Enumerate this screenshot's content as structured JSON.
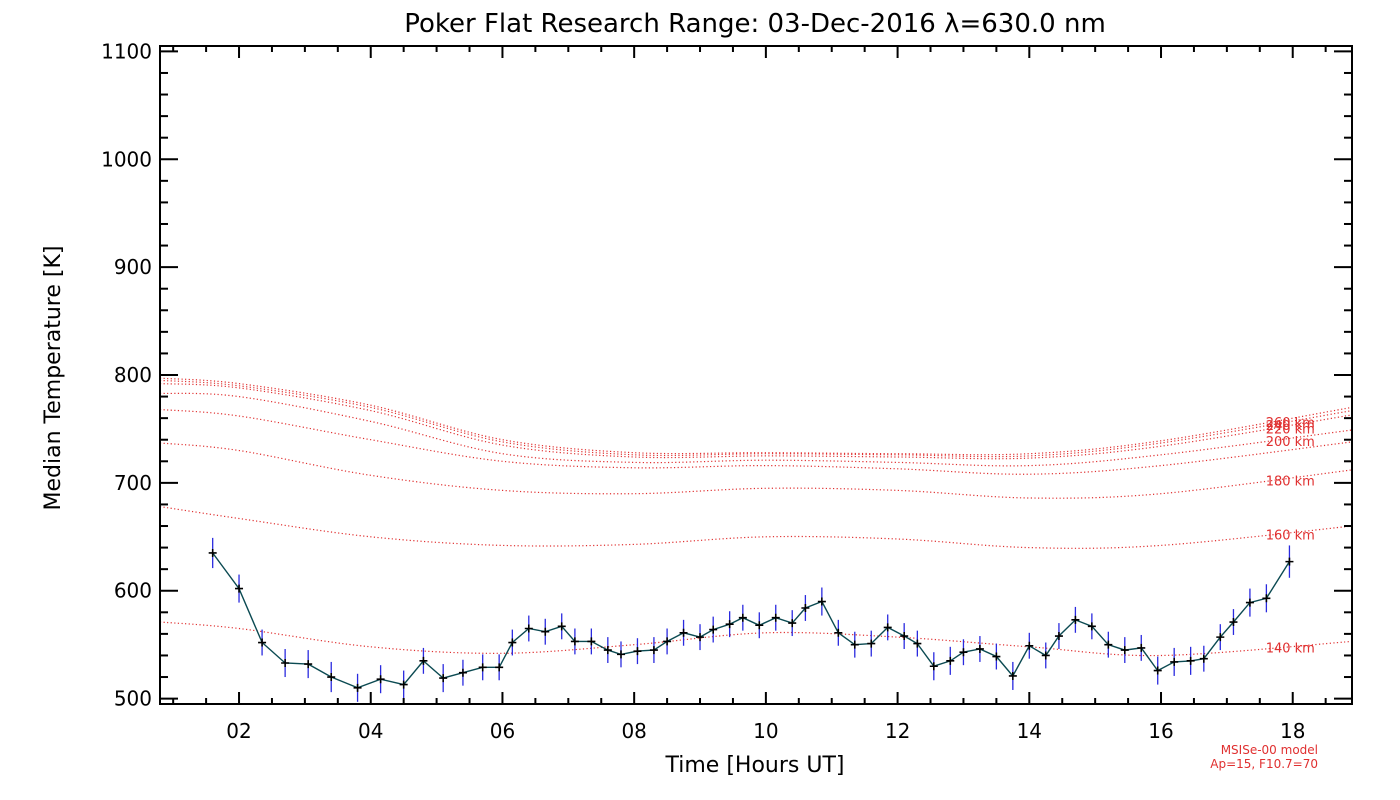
{
  "colors": {
    "axis": "#000000",
    "model_curve": "#e03030",
    "data_line": "#0b4a52",
    "error_bar": "#2a2adf",
    "marker": "#000000"
  },
  "chart_data": {
    "type": "line",
    "title": "Poker Flat Research Range: 03-Dec-2016 λ=630.0 nm",
    "xlabel": "Time [Hours UT]",
    "ylabel": "Median Temperature [K]",
    "xlim": [
      0.8,
      18.9
    ],
    "ylim": [
      495,
      1105
    ],
    "x_ticks": [
      2,
      4,
      6,
      8,
      10,
      12,
      14,
      16,
      18
    ],
    "x_tick_labels": [
      "02",
      "04",
      "06",
      "08",
      "10",
      "12",
      "14",
      "16",
      "18"
    ],
    "y_ticks": [
      500,
      600,
      700,
      800,
      900,
      1000,
      1100
    ],
    "y_tick_labels": [
      "500",
      "600",
      "700",
      "800",
      "900",
      "1000",
      "1100"
    ],
    "model_note": [
      "MSISe-00 model",
      "Ap=15, F10.7=70"
    ],
    "model_x": [
      0.8,
      2,
      4,
      6,
      8,
      10,
      12,
      14,
      16,
      18.9
    ],
    "model_series": [
      {
        "name": "260 km",
        "label": "260 km",
        "values": [
          797,
          792,
          772,
          740,
          728,
          728,
          727,
          727,
          739,
          770
        ]
      },
      {
        "name": "240 km",
        "label": "240 km",
        "values": [
          795,
          790,
          770,
          738,
          726,
          727,
          726,
          725,
          737,
          767
        ]
      },
      {
        "name": "220 km",
        "label": "220 km",
        "values": [
          792,
          788,
          767,
          735,
          724,
          725,
          724,
          723,
          734,
          763
        ]
      },
      {
        "name": "200 km",
        "label": "200 km",
        "values": [
          783,
          780,
          757,
          727,
          719,
          721,
          719,
          716,
          726,
          749
        ]
      },
      {
        "name": "unlabeled",
        "label": "",
        "values": [
          768,
          762,
          740,
          720,
          714,
          716,
          713,
          708,
          716,
          738
        ]
      },
      {
        "name": "180 km",
        "label": "180 km",
        "values": [
          737,
          730,
          707,
          693,
          690,
          695,
          693,
          686,
          690,
          712
        ]
      },
      {
        "name": "160 km",
        "label": "160 km",
        "values": [
          678,
          667,
          650,
          642,
          643,
          650,
          648,
          640,
          642,
          660
        ]
      },
      {
        "name": "140 km",
        "label": "140 km",
        "values": [
          571,
          565,
          548,
          542,
          550,
          561,
          557,
          548,
          540,
          553
        ]
      }
    ],
    "observed": {
      "name": "Median Temperature",
      "x": [
        1.6,
        2.0,
        2.35,
        2.7,
        3.05,
        3.4,
        3.8,
        4.15,
        4.5,
        4.8,
        5.1,
        5.4,
        5.7,
        5.95,
        6.15,
        6.4,
        6.65,
        6.9,
        7.1,
        7.35,
        7.6,
        7.8,
        8.05,
        8.3,
        8.5,
        8.75,
        9.0,
        9.2,
        9.45,
        9.65,
        9.9,
        10.15,
        10.4,
        10.6,
        10.85,
        11.1,
        11.35,
        11.6,
        11.85,
        12.1,
        12.3,
        12.55,
        12.8,
        13.0,
        13.25,
        13.5,
        13.75,
        14.0,
        14.25,
        14.45,
        14.7,
        14.95,
        15.2,
        15.45,
        15.7,
        15.95,
        16.2,
        16.45,
        16.65,
        16.9,
        17.1,
        17.35,
        17.6,
        17.95
      ],
      "y": [
        635,
        602,
        552,
        533,
        532,
        520,
        510,
        518,
        513,
        535,
        519,
        524,
        529,
        529,
        552,
        565,
        562,
        567,
        553,
        553,
        545,
        541,
        544,
        545,
        553,
        561,
        557,
        564,
        569,
        575,
        568,
        575,
        570,
        584,
        590,
        561,
        550,
        551,
        566,
        558,
        551,
        530,
        535,
        543,
        546,
        539,
        521,
        549,
        540,
        558,
        573,
        567,
        550,
        545,
        547,
        526,
        534,
        535,
        537,
        557,
        571,
        589,
        593,
        627
      ],
      "err": [
        14,
        13,
        12,
        13,
        13,
        14,
        13,
        13,
        13,
        12,
        13,
        12,
        12,
        12,
        12,
        12,
        12,
        12,
        12,
        12,
        12,
        12,
        12,
        12,
        12,
        12,
        12,
        12,
        12,
        12,
        12,
        12,
        12,
        12,
        13,
        12,
        12,
        12,
        12,
        12,
        12,
        13,
        13,
        12,
        12,
        12,
        13,
        12,
        12,
        12,
        12,
        12,
        12,
        12,
        12,
        13,
        13,
        13,
        12,
        12,
        12,
        13,
        13,
        15
      ]
    }
  }
}
